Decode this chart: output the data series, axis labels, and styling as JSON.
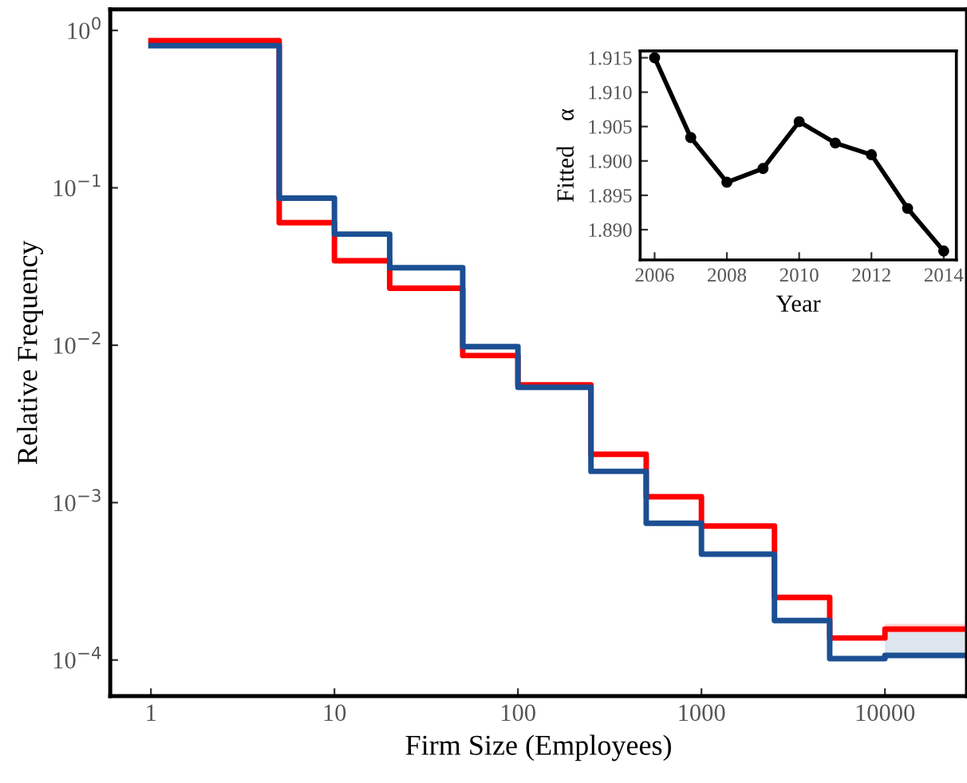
{
  "chart_data": [
    {
      "type": "step",
      "xlabel": "Firm Size (Employees)",
      "ylabel": "Relative Frequency",
      "log": "xy",
      "grid": false,
      "xlim": [
        0.6,
        28000
      ],
      "ylim": [
        5.9e-05,
        1.36
      ],
      "xticks": [
        1,
        10,
        100,
        1000,
        10000
      ],
      "yticks": [
        {
          "value": 0.0001,
          "label": "10$^{−4}$"
        },
        {
          "value": 0.001,
          "label": "10$^{−3}$"
        },
        {
          "value": 0.01,
          "label": "10$^{−2}$"
        },
        {
          "value": 0.1,
          "label": "10$^{−1}$"
        },
        {
          "value": 1,
          "label": "10$^{0}$"
        }
      ],
      "x": [
        1,
        5,
        10,
        20,
        50,
        100,
        250,
        500,
        1000,
        2500,
        5000,
        10000,
        28000
      ],
      "series": [
        {
          "color": "#ff0000",
          "values": [
            0.86,
            0.06,
            0.0344,
            0.023,
            0.0086,
            0.0056,
            0.00203,
            0.00109,
            0.00071,
            0.00025,
            0.000138,
            0.000157,
            0.000157
          ],
          "lower": [
            null,
            null,
            null,
            null,
            null,
            null,
            null,
            null,
            null,
            null,
            null,
            0.00015,
            0.00015
          ],
          "upper": [
            null,
            null,
            null,
            null,
            null,
            null,
            null,
            null,
            null,
            null,
            null,
            0.00017,
            0.00017
          ]
        },
        {
          "color": "#1b4f93",
          "values": [
            0.8,
            0.086,
            0.0508,
            0.0311,
            0.0098,
            0.0054,
            0.00158,
            0.00074,
            0.00047,
            0.000178,
            0.000102,
            0.000107,
            0.000107
          ],
          "lower": [
            null,
            null,
            null,
            null,
            null,
            null,
            null,
            null,
            null,
            null,
            null,
            0.000105,
            0.000105
          ],
          "upper": [
            null,
            null,
            null,
            null,
            null,
            null,
            null,
            null,
            null,
            null,
            null,
            0.00015,
            0.00015
          ]
        }
      ]
    },
    {
      "type": "line",
      "xlabel": "Year",
      "ylabel": "Fitted    α",
      "marker": "circle",
      "grid": false,
      "xlim": [
        2005.6,
        2014.35
      ],
      "ylim": [
        1.8856,
        1.916
      ],
      "xticks": [
        2006,
        2008,
        2010,
        2012,
        2014
      ],
      "yticks": [
        {
          "value": 1.89,
          "label": "1.890"
        },
        1.895,
        {
          "value": 1.9,
          "label": "1.900"
        },
        1.905,
        {
          "value": 1.91,
          "label": "1.910"
        },
        1.915
      ],
      "x": [
        2006,
        2007,
        2008,
        2009,
        2010,
        2011,
        2012,
        2013,
        2014
      ],
      "series": [
        {
          "color": "#000000",
          "values": [
            1.915,
            1.9034,
            1.8969,
            1.8989,
            1.9057,
            1.9026,
            1.9009,
            1.8931,
            1.8869
          ]
        }
      ]
    }
  ]
}
